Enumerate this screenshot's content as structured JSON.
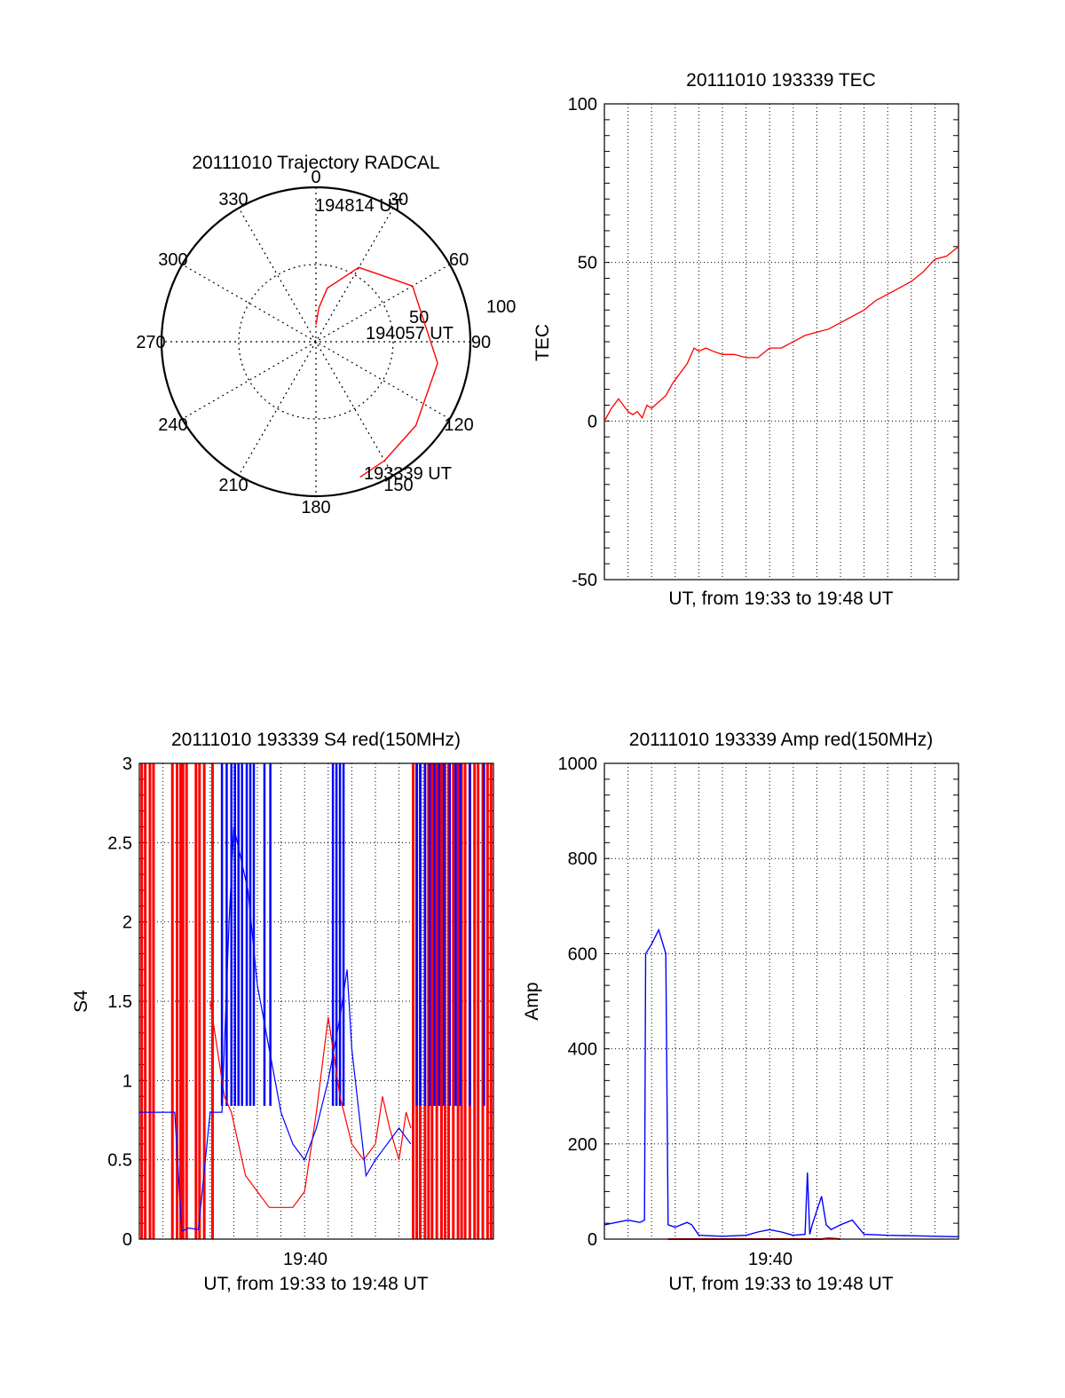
{
  "colors": {
    "red": "#ff0000",
    "blue": "#0000ff",
    "black": "#000000"
  },
  "chart_data": [
    {
      "type": "scatter",
      "subtype": "polar",
      "title": "20111010 Trajectory RADCAL",
      "angle_labels": [
        "0",
        "30",
        "60",
        "90",
        "120",
        "150",
        "180",
        "210",
        "240",
        "270",
        "300",
        "330"
      ],
      "radius_labels": [
        "50",
        "100"
      ],
      "series": [
        {
          "color": "#ff0000",
          "points": [
            {
              "az": 0.0,
              "el": 80.0
            },
            {
              "az": 5.0,
              "el": 70.0
            },
            {
              "az": 12.0,
              "el": 58.0
            },
            {
              "az": 30.0,
              "el": 40.0
            },
            {
              "az": 60.0,
              "el": 25.0
            },
            {
              "az": 100.0,
              "el": 18.0
            },
            {
              "az": 130.0,
              "el": 14.0
            },
            {
              "az": 150.0,
              "el": 10.0
            },
            {
              "az": 162.0,
              "el": 7.0
            }
          ]
        }
      ],
      "annotations": [
        "194814 UT",
        "194057 UT",
        "193339 UT"
      ],
      "grid": true
    },
    {
      "type": "line",
      "title": "20111010 193339 TEC",
      "xlabel": "UT, from 19:33 to 19:48 UT",
      "ylabel": "TEC",
      "xlim": [
        0,
        15
      ],
      "ylim": [
        -50,
        100
      ],
      "yticks": [
        -50,
        0,
        50,
        100
      ],
      "grid": true,
      "series": [
        {
          "color": "#ff0000",
          "x": [
            0,
            0.3,
            0.6,
            0.8,
            1.0,
            1.2,
            1.4,
            1.6,
            1.8,
            2.0,
            2.3,
            2.6,
            2.9,
            3.2,
            3.5,
            3.8,
            4.0,
            4.3,
            4.6,
            5.0,
            5.5,
            6.0,
            6.5,
            7.0,
            7.5,
            8.0,
            8.5,
            9.0,
            9.5,
            10.0,
            10.5,
            11.0,
            11.5,
            12.0,
            12.5,
            13.0,
            13.5,
            14.0,
            14.5,
            15.0
          ],
          "y": [
            0,
            4,
            7,
            5,
            3,
            2,
            3,
            1,
            5,
            4,
            6,
            8,
            12,
            15,
            18,
            23,
            22,
            23,
            22,
            21,
            21,
            20,
            20,
            23,
            23,
            25,
            27,
            28,
            29,
            31,
            33,
            35,
            38,
            40,
            42,
            44,
            47,
            51,
            52,
            55
          ]
        }
      ]
    },
    {
      "type": "line",
      "title": "20111010 193339 S4 red(150MHz)",
      "xlabel": "UT, from 19:33 to 19:48 UT",
      "ylabel": "S4",
      "xlim": [
        0,
        15
      ],
      "ylim": [
        0,
        3
      ],
      "yticks": [
        "0",
        "0.5",
        "1",
        "1.5",
        "2",
        "2.5",
        "3"
      ],
      "xticks": [
        "19:40"
      ],
      "grid": true,
      "series": [
        {
          "color": "#ff0000",
          "x": [
            3.0,
            3.3,
            3.6,
            3.9,
            4.2,
            4.5,
            5.0,
            5.5,
            6.0,
            6.5,
            7.0,
            7.5,
            8.0,
            8.5,
            9.0,
            9.5,
            10.0,
            10.3,
            10.6,
            11.0,
            11.3,
            11.5
          ],
          "y": [
            1.5,
            1.2,
            0.9,
            0.8,
            0.6,
            0.4,
            0.3,
            0.2,
            0.2,
            0.2,
            0.3,
            0.8,
            1.4,
            0.9,
            0.6,
            0.5,
            0.6,
            0.9,
            0.7,
            0.5,
            0.8,
            0.7
          ]
        },
        {
          "color": "#0000ff",
          "x": [
            0.0,
            0.5,
            1.0,
            1.5,
            1.8,
            2.1,
            2.5,
            3.0,
            3.2,
            3.5,
            3.8,
            4.0,
            4.3,
            4.6,
            5.0,
            5.5,
            6.0,
            6.5,
            7.0,
            7.5,
            8.0,
            8.5,
            8.8,
            9.0,
            9.3,
            9.6,
            10.0,
            10.5,
            11.0,
            11.5
          ],
          "y": [
            0.8,
            0.8,
            0.8,
            0.8,
            0.05,
            0.07,
            0.06,
            0.8,
            0.8,
            0.8,
            2.0,
            2.6,
            2.4,
            2.2,
            1.6,
            1.2,
            0.8,
            0.6,
            0.5,
            0.7,
            1.0,
            1.4,
            1.7,
            1.2,
            0.8,
            0.4,
            0.5,
            0.6,
            0.7,
            0.6
          ]
        }
      ],
      "red_vertical_spikes_x": [
        0.1,
        0.25,
        0.45,
        0.6,
        1.4,
        1.6,
        1.75,
        1.85,
        2.0,
        2.4,
        2.55,
        2.75,
        3.1,
        11.6,
        11.75,
        11.9,
        12.1,
        12.25,
        12.4,
        12.6,
        12.8,
        12.95,
        13.1,
        13.3,
        13.5,
        13.65,
        13.8,
        14.0,
        14.2,
        14.35,
        14.55,
        14.75,
        14.9
      ],
      "blue_vertical_spikes_x": [
        3.5,
        3.7,
        3.9,
        4.05,
        4.2,
        4.35,
        4.55,
        4.7,
        4.85,
        5.3,
        5.55,
        8.2,
        8.35,
        8.5,
        8.65,
        11.75,
        11.9,
        12.1,
        12.3,
        12.5,
        12.7,
        12.9,
        13.15,
        13.4,
        13.6,
        14.0,
        14.6
      ]
    },
    {
      "type": "line",
      "title": "20111010 193339 Amp red(150MHz)",
      "xlabel": "UT, from 19:33 to 19:48 UT",
      "ylabel": "Amp",
      "xlim": [
        0,
        15
      ],
      "ylim": [
        0,
        1000
      ],
      "yticks": [
        0,
        200,
        400,
        600,
        800,
        1000
      ],
      "xticks": [
        "19:40"
      ],
      "grid": true,
      "series": [
        {
          "color": "#0000ff",
          "x": [
            0,
            0.5,
            1.0,
            1.5,
            1.7,
            1.75,
            2.0,
            2.3,
            2.6,
            2.7,
            3.0,
            3.5,
            3.7,
            4.0,
            5.0,
            6.0,
            6.5,
            7.0,
            7.5,
            8.0,
            8.5,
            8.6,
            8.7,
            8.8,
            9.0,
            9.2,
            9.4,
            9.6,
            10.0,
            10.5,
            11.0,
            12.0,
            13.0,
            14.0,
            15.0
          ],
          "y": [
            30,
            35,
            40,
            35,
            40,
            600,
            620,
            650,
            600,
            30,
            25,
            35,
            30,
            8,
            6,
            8,
            15,
            20,
            15,
            8,
            10,
            140,
            10,
            30,
            60,
            90,
            30,
            20,
            30,
            40,
            10,
            8,
            7,
            6,
            5
          ]
        },
        {
          "color": "#ff0000",
          "x": [
            2.7,
            3.0,
            9.2,
            9.5,
            10.0
          ],
          "y": [
            0,
            0,
            0,
            2,
            0
          ]
        }
      ]
    }
  ]
}
